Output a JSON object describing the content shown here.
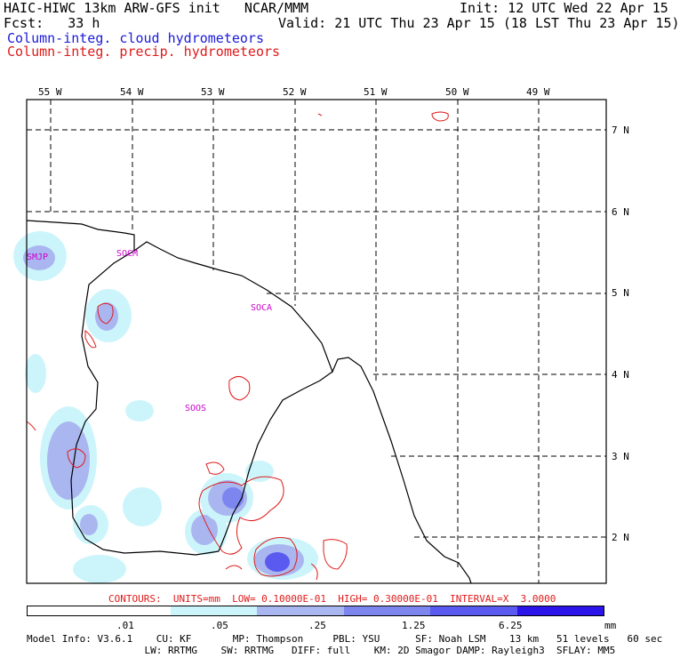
{
  "header": {
    "model": "HAIC-HIWC 13km ARW-GFS init   NCAR/MMM",
    "init": "Init: 12 UTC Wed 22 Apr 15",
    "fcst": "Fcst:   33 h",
    "valid": "Valid: 21 UTC Thu 23 Apr 15 (18 LST Thu 23 Apr 15)",
    "cloud_label": "Column-integ. cloud hydrometeors",
    "precip_label": "Column-integ. precip. hydrometeors",
    "cloud_color": "#1a1ad8",
    "precip_color": "#e01a1a"
  },
  "map": {
    "lon_labels": [
      "55 W",
      "54 W",
      "53 W",
      "52 W",
      "51 W",
      "50 W",
      "49 W"
    ],
    "lat_labels": [
      "7 N",
      "6 N",
      "5 N",
      "4 N",
      "3 N",
      "2 N"
    ],
    "stations": [
      {
        "id": "SMJP"
      },
      {
        "id": "SOCM"
      },
      {
        "id": "SOCA"
      },
      {
        "id": "SOOS"
      }
    ],
    "station_color": "#cc00cc"
  },
  "contour_note": "CONTOURS:  UNITS=mm  LOW= 0.10000E-01  HIGH= 0.30000E-01  INTERVAL=X  3.0000",
  "legend": {
    "colors": [
      "#ffffff",
      "#ccf5fb",
      "#aab6f0",
      "#7d86ee",
      "#5a5af0",
      "#2b14ea"
    ],
    "tick_labels": [
      ".01",
      ".05",
      ".25",
      "1.25",
      "6.25"
    ],
    "units": "mm"
  },
  "footer": {
    "line1": "Model Info: V3.6.1    CU: KF       MP: Thompson     PBL: YSU      SF: Noah LSM    13 km   51 levels   60 sec",
    "line2": "                    LW: RRTMG    SW: RRTMG   DIFF: full    KM: 2D Smagor DAMP: Rayleigh3  SFLAY: MM5"
  }
}
